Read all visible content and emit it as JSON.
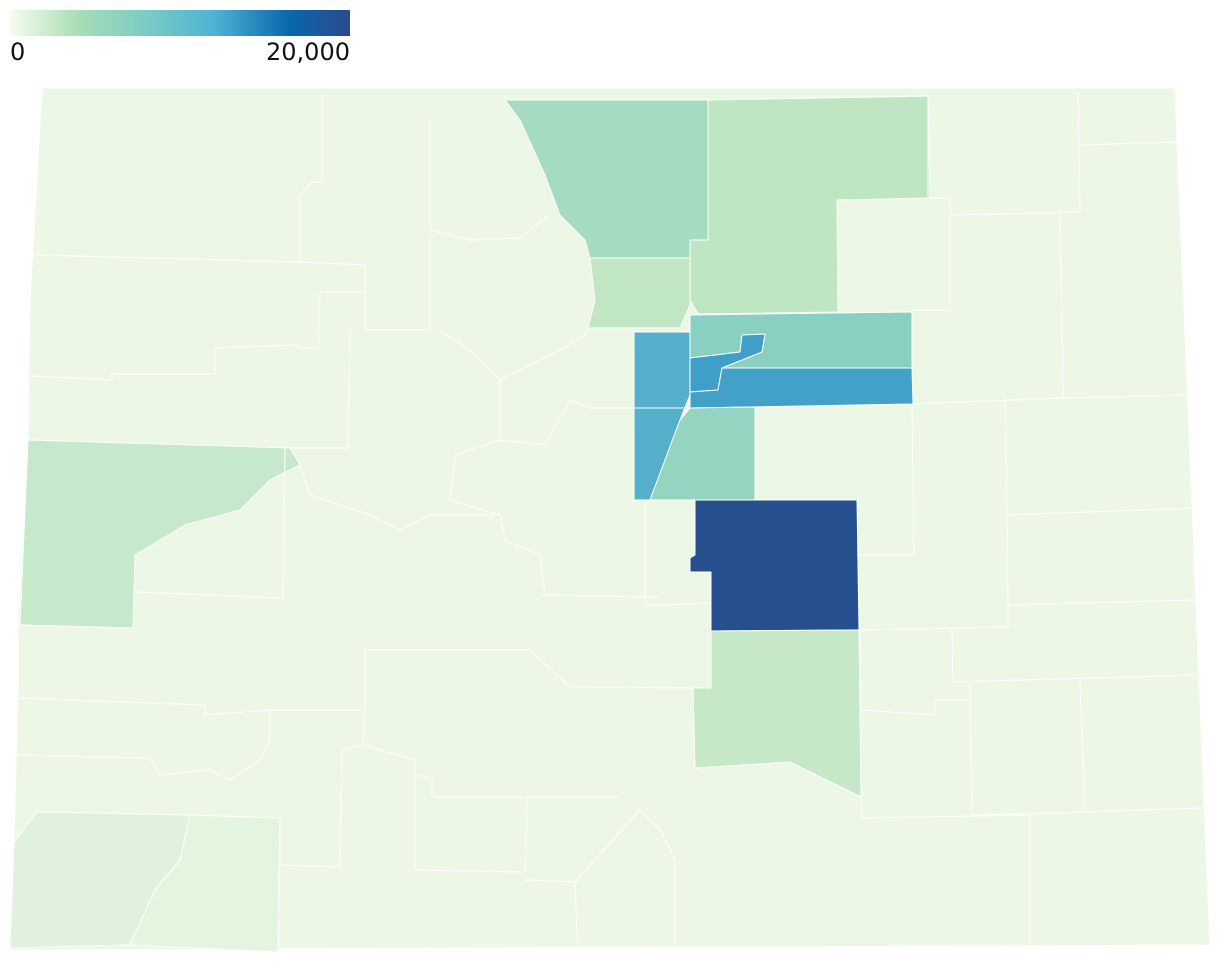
{
  "legend": {
    "min_label": "0",
    "max_label": "20,000",
    "min": 0,
    "max": 20000,
    "colors": [
      "#f7fcf0",
      "#a8ddb5",
      "#7bccc4",
      "#4eb3d3",
      "#0868ac",
      "#2b4a8c"
    ]
  },
  "map": {
    "base_fill": "#edf7e6",
    "regions": [
      {
        "id": "north-central-1",
        "fill": "#a5dbc1",
        "value": 5000
      },
      {
        "id": "north-central-2",
        "fill": "#bfe6c2",
        "value": 3000
      },
      {
        "id": "front-range-1",
        "fill": "#c0e6c3",
        "value": 3000
      },
      {
        "id": "front-range-2",
        "fill": "#56b0cb",
        "value": 9500
      },
      {
        "id": "front-range-3",
        "fill": "#89cfc2",
        "value": 7000
      },
      {
        "id": "front-range-4",
        "fill": "#3f9fc9",
        "value": 11000
      },
      {
        "id": "front-range-5",
        "fill": "#43a0c9",
        "value": 11000
      },
      {
        "id": "front-range-6",
        "fill": "#95d4c0",
        "value": 6000
      },
      {
        "id": "front-range-7",
        "fill": "#264f8e",
        "value": 20000
      },
      {
        "id": "south-central-1",
        "fill": "#c6e8c9",
        "value": 2500
      },
      {
        "id": "western-1",
        "fill": "#c6e8cb",
        "value": 2500
      },
      {
        "id": "southwest-1",
        "fill": "#e0f2de",
        "value": 1000
      },
      {
        "id": "southwest-2",
        "fill": "#e3f4df",
        "value": 800
      }
    ]
  }
}
